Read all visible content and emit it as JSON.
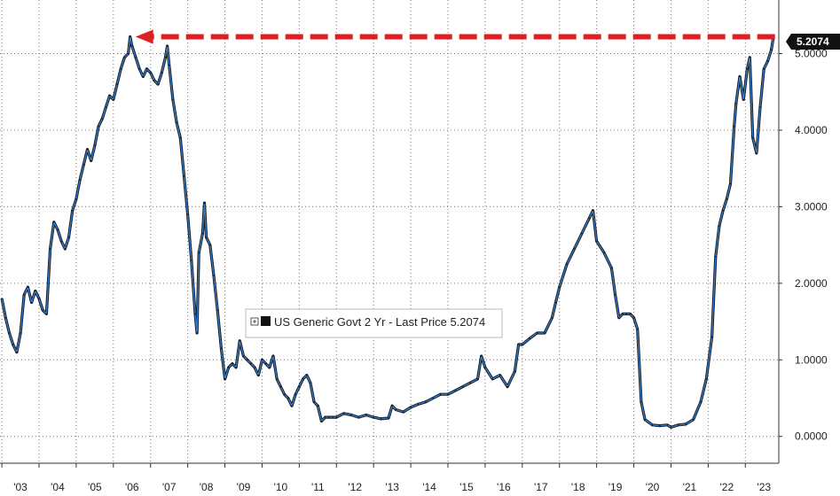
{
  "chart_data": {
    "type": "line",
    "title": "",
    "xlabel": "",
    "ylabel": "",
    "series": [
      {
        "name": "US Generic Govt 2 Yr - Last Price 5.2074",
        "color": "#1a1a1a",
        "highlight_color": "#2f7fd6",
        "points": [
          [
            2003.0,
            1.8
          ],
          [
            2003.1,
            1.55
          ],
          [
            2003.2,
            1.35
          ],
          [
            2003.3,
            1.2
          ],
          [
            2003.4,
            1.1
          ],
          [
            2003.5,
            1.35
          ],
          [
            2003.6,
            1.85
          ],
          [
            2003.7,
            1.95
          ],
          [
            2003.8,
            1.75
          ],
          [
            2003.9,
            1.9
          ],
          [
            2004.0,
            1.8
          ],
          [
            2004.1,
            1.65
          ],
          [
            2004.2,
            1.6
          ],
          [
            2004.3,
            2.45
          ],
          [
            2004.4,
            2.8
          ],
          [
            2004.5,
            2.7
          ],
          [
            2004.6,
            2.55
          ],
          [
            2004.7,
            2.45
          ],
          [
            2004.8,
            2.6
          ],
          [
            2004.9,
            2.95
          ],
          [
            2005.0,
            3.1
          ],
          [
            2005.1,
            3.35
          ],
          [
            2005.2,
            3.55
          ],
          [
            2005.3,
            3.75
          ],
          [
            2005.4,
            3.6
          ],
          [
            2005.5,
            3.8
          ],
          [
            2005.6,
            4.05
          ],
          [
            2005.7,
            4.15
          ],
          [
            2005.8,
            4.3
          ],
          [
            2005.9,
            4.45
          ],
          [
            2006.0,
            4.4
          ],
          [
            2006.1,
            4.6
          ],
          [
            2006.2,
            4.8
          ],
          [
            2006.3,
            4.95
          ],
          [
            2006.4,
            5.0
          ],
          [
            2006.45,
            5.22
          ],
          [
            2006.5,
            5.1
          ],
          [
            2006.6,
            4.95
          ],
          [
            2006.7,
            4.8
          ],
          [
            2006.8,
            4.7
          ],
          [
            2006.9,
            4.8
          ],
          [
            2007.0,
            4.75
          ],
          [
            2007.1,
            4.65
          ],
          [
            2007.2,
            4.6
          ],
          [
            2007.3,
            4.75
          ],
          [
            2007.4,
            4.95
          ],
          [
            2007.45,
            5.1
          ],
          [
            2007.5,
            4.85
          ],
          [
            2007.6,
            4.4
          ],
          [
            2007.7,
            4.1
          ],
          [
            2007.8,
            3.9
          ],
          [
            2007.9,
            3.4
          ],
          [
            2008.0,
            2.9
          ],
          [
            2008.1,
            2.3
          ],
          [
            2008.2,
            1.6
          ],
          [
            2008.25,
            1.35
          ],
          [
            2008.3,
            2.4
          ],
          [
            2008.4,
            2.65
          ],
          [
            2008.45,
            3.05
          ],
          [
            2008.5,
            2.6
          ],
          [
            2008.6,
            2.5
          ],
          [
            2008.7,
            2.1
          ],
          [
            2008.8,
            1.65
          ],
          [
            2008.9,
            1.15
          ],
          [
            2009.0,
            0.75
          ],
          [
            2009.1,
            0.9
          ],
          [
            2009.2,
            0.95
          ],
          [
            2009.3,
            0.9
          ],
          [
            2009.4,
            1.25
          ],
          [
            2009.5,
            1.05
          ],
          [
            2009.6,
            1.0
          ],
          [
            2009.7,
            0.95
          ],
          [
            2009.8,
            0.9
          ],
          [
            2009.9,
            0.8
          ],
          [
            2010.0,
            1.0
          ],
          [
            2010.1,
            0.95
          ],
          [
            2010.2,
            0.9
          ],
          [
            2010.3,
            1.05
          ],
          [
            2010.4,
            0.75
          ],
          [
            2010.5,
            0.65
          ],
          [
            2010.6,
            0.55
          ],
          [
            2010.7,
            0.5
          ],
          [
            2010.8,
            0.4
          ],
          [
            2010.9,
            0.55
          ],
          [
            2011.0,
            0.65
          ],
          [
            2011.1,
            0.75
          ],
          [
            2011.2,
            0.8
          ],
          [
            2011.3,
            0.7
          ],
          [
            2011.4,
            0.45
          ],
          [
            2011.5,
            0.4
          ],
          [
            2011.6,
            0.2
          ],
          [
            2011.7,
            0.25
          ],
          [
            2011.8,
            0.25
          ],
          [
            2011.9,
            0.25
          ],
          [
            2012.0,
            0.25
          ],
          [
            2012.2,
            0.3
          ],
          [
            2012.4,
            0.28
          ],
          [
            2012.6,
            0.25
          ],
          [
            2012.8,
            0.28
          ],
          [
            2013.0,
            0.25
          ],
          [
            2013.2,
            0.23
          ],
          [
            2013.4,
            0.24
          ],
          [
            2013.5,
            0.4
          ],
          [
            2013.6,
            0.35
          ],
          [
            2013.8,
            0.32
          ],
          [
            2014.0,
            0.38
          ],
          [
            2014.2,
            0.42
          ],
          [
            2014.4,
            0.45
          ],
          [
            2014.6,
            0.5
          ],
          [
            2014.8,
            0.55
          ],
          [
            2015.0,
            0.55
          ],
          [
            2015.2,
            0.6
          ],
          [
            2015.4,
            0.65
          ],
          [
            2015.6,
            0.7
          ],
          [
            2015.8,
            0.75
          ],
          [
            2015.9,
            1.05
          ],
          [
            2016.0,
            0.9
          ],
          [
            2016.2,
            0.75
          ],
          [
            2016.4,
            0.8
          ],
          [
            2016.6,
            0.65
          ],
          [
            2016.8,
            0.85
          ],
          [
            2016.9,
            1.2
          ],
          [
            2017.0,
            1.2
          ],
          [
            2017.2,
            1.28
          ],
          [
            2017.4,
            1.35
          ],
          [
            2017.6,
            1.35
          ],
          [
            2017.8,
            1.55
          ],
          [
            2017.9,
            1.75
          ],
          [
            2018.0,
            1.95
          ],
          [
            2018.2,
            2.25
          ],
          [
            2018.4,
            2.45
          ],
          [
            2018.6,
            2.65
          ],
          [
            2018.8,
            2.85
          ],
          [
            2018.9,
            2.95
          ],
          [
            2019.0,
            2.55
          ],
          [
            2019.2,
            2.4
          ],
          [
            2019.4,
            2.2
          ],
          [
            2019.5,
            1.85
          ],
          [
            2019.6,
            1.55
          ],
          [
            2019.7,
            1.6
          ],
          [
            2019.8,
            1.6
          ],
          [
            2019.9,
            1.6
          ],
          [
            2020.0,
            1.55
          ],
          [
            2020.1,
            1.4
          ],
          [
            2020.2,
            0.45
          ],
          [
            2020.3,
            0.22
          ],
          [
            2020.5,
            0.15
          ],
          [
            2020.7,
            0.14
          ],
          [
            2020.9,
            0.15
          ],
          [
            2021.0,
            0.12
          ],
          [
            2021.2,
            0.15
          ],
          [
            2021.4,
            0.16
          ],
          [
            2021.6,
            0.22
          ],
          [
            2021.8,
            0.45
          ],
          [
            2021.95,
            0.75
          ],
          [
            2022.1,
            1.3
          ],
          [
            2022.2,
            2.35
          ],
          [
            2022.3,
            2.75
          ],
          [
            2022.4,
            2.95
          ],
          [
            2022.5,
            3.1
          ],
          [
            2022.6,
            3.3
          ],
          [
            2022.7,
            4.05
          ],
          [
            2022.75,
            4.35
          ],
          [
            2022.85,
            4.7
          ],
          [
            2022.95,
            4.4
          ],
          [
            2023.05,
            4.8
          ],
          [
            2023.12,
            4.95
          ],
          [
            2023.2,
            3.9
          ],
          [
            2023.3,
            3.7
          ],
          [
            2023.4,
            4.3
          ],
          [
            2023.5,
            4.8
          ],
          [
            2023.6,
            4.9
          ],
          [
            2023.7,
            5.05
          ],
          [
            2023.75,
            5.2
          ]
        ]
      }
    ],
    "x_range": [
      2002.95,
      2023.9
    ],
    "y_range": [
      -0.35,
      5.7
    ],
    "x_ticks": [
      {
        "value": 2003.5,
        "label": "'03"
      },
      {
        "value": 2004.5,
        "label": "'04"
      },
      {
        "value": 2005.5,
        "label": "'05"
      },
      {
        "value": 2006.5,
        "label": "'06"
      },
      {
        "value": 2007.5,
        "label": "'07"
      },
      {
        "value": 2008.5,
        "label": "'08"
      },
      {
        "value": 2009.5,
        "label": "'09"
      },
      {
        "value": 2010.5,
        "label": "'10"
      },
      {
        "value": 2011.5,
        "label": "'11"
      },
      {
        "value": 2012.5,
        "label": "'12"
      },
      {
        "value": 2013.5,
        "label": "'13"
      },
      {
        "value": 2014.5,
        "label": "'14"
      },
      {
        "value": 2015.5,
        "label": "'15"
      },
      {
        "value": 2016.5,
        "label": "'16"
      },
      {
        "value": 2017.5,
        "label": "'17"
      },
      {
        "value": 2018.5,
        "label": "'18"
      },
      {
        "value": 2019.5,
        "label": "'19"
      },
      {
        "value": 2020.5,
        "label": "'20"
      },
      {
        "value": 2021.5,
        "label": "'21"
      },
      {
        "value": 2022.5,
        "label": "'22"
      },
      {
        "value": 2023.5,
        "label": "'23"
      }
    ],
    "y_ticks": [
      {
        "value": 0,
        "label": "0.0000"
      },
      {
        "value": 1,
        "label": "1.0000"
      },
      {
        "value": 2,
        "label": "2.0000"
      },
      {
        "value": 3,
        "label": "3.0000"
      },
      {
        "value": 4,
        "label": "4.0000"
      },
      {
        "value": 5,
        "label": "5.0000"
      }
    ],
    "grid": true,
    "legend": {
      "text": "US Generic Govt 2 Yr - Last Price 5.2074",
      "position": "center"
    },
    "last_price_tag": {
      "value": 5.2074,
      "label": "5.2074",
      "color": "#111111"
    },
    "annotation_arrow": {
      "from_x": 2023.75,
      "to_x": 2006.45,
      "y": 5.22,
      "color": "#e02020",
      "style": "dashed",
      "head": "left"
    }
  }
}
